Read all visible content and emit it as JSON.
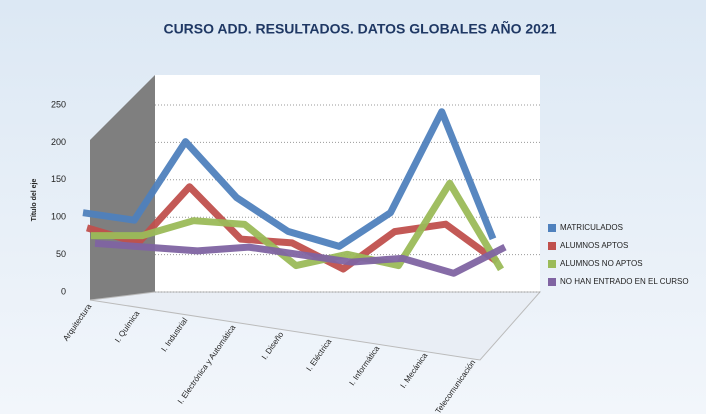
{
  "chart_data": {
    "type": "line3d",
    "title": "CURSO ADD. RESULTADOS. DATOS GLOBALES AÑO 2021",
    "y_axis_label": "Título del eje",
    "categories": [
      "Arquitectura",
      "I. Química",
      "I. Industrial",
      "I. Electrónica y Automática",
      "I. Diseño",
      "I. Eléctrica",
      "I. Informática",
      "I. Mecánica",
      "I. Telecomunicación"
    ],
    "series": [
      {
        "name": "MATRICULADOS",
        "color": "#4f81bd",
        "values": [
          90,
          80,
          185,
          110,
          65,
          45,
          90,
          225,
          55
        ]
      },
      {
        "name": "ALUMNOS APTOS",
        "color": "#c0504d",
        "values": [
          75,
          55,
          130,
          60,
          55,
          20,
          70,
          80,
          30
        ]
      },
      {
        "name": "ALUMNOS NO APTOS",
        "color": "#9bbb59",
        "values": [
          70,
          70,
          90,
          85,
          30,
          45,
          30,
          140,
          25
        ]
      },
      {
        "name": "NO HAN ENTRADO EN EL CURSO",
        "color": "#8064a2",
        "values": [
          65,
          60,
          55,
          60,
          50,
          40,
          45,
          25,
          60
        ]
      }
    ],
    "ylim": [
      0,
      250
    ],
    "yticks": [
      0,
      50,
      100,
      150,
      200,
      250
    ],
    "grid": true,
    "legend": "right"
  }
}
